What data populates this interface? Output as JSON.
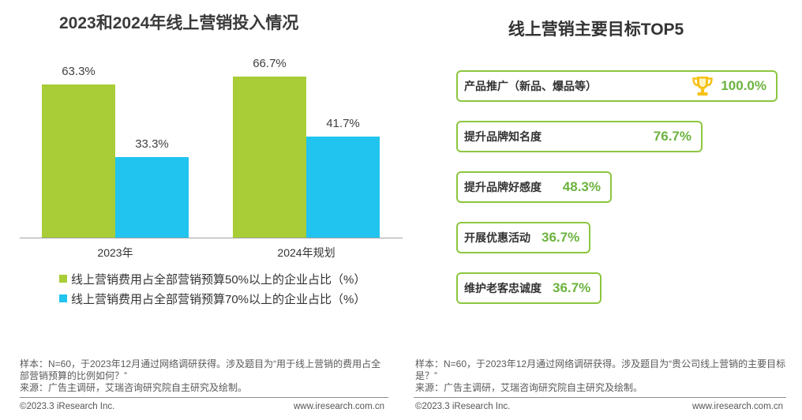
{
  "left": {
    "footer": {
      "sample": "样本：N=60，于2023年12月通过网络调研获得。涉及题目为“用于线上营销的费用占全部营销预算的比例如何？”",
      "source": "来源：广告主调研，艾瑞咨询研究院自主研究及绘制。",
      "copyright": "©2023.3 iResearch Inc.",
      "website": "www.iresearch.com.cn"
    }
  },
  "right": {
    "footer": {
      "sample": "样本：N=60，于2023年12月通过网络调研获得。涉及题目为“贵公司线上营销的主要目标是？”",
      "source": "来源：广告主调研，艾瑞咨询研究院自主研究及绘制。",
      "copyright": "©2023.3 iResearch Inc.",
      "website": "www.iresearch.com.cn"
    }
  },
  "chart_data": [
    {
      "type": "bar",
      "title": "2023和2024年线上营销投入情况",
      "categories": [
        "2023年",
        "2024年规划"
      ],
      "series": [
        {
          "name": "线上营销费用占全部营销预算50%以上的企业占比（%）",
          "values": [
            63.3,
            66.7
          ],
          "data_labels": [
            "63.3%",
            "66.7%"
          ],
          "color": "#A8CD36"
        },
        {
          "name": "线上营销费用占全部营销预算70%以上的企业占比（%）",
          "values": [
            33.3,
            41.7
          ],
          "data_labels": [
            "33.3%",
            "41.7%"
          ],
          "color": "#20C4EF"
        }
      ],
      "legend": "bottom",
      "grid": false
    },
    {
      "type": "bar",
      "orientation": "horizontal",
      "title": "线上营销主要目标TOP5",
      "categories": [
        "产品推广（新品、爆品等）",
        "提升品牌知名度",
        "提升品牌好感度",
        "开展优惠活动",
        "维护老客忠诚度"
      ],
      "values": [
        100.0,
        76.7,
        48.3,
        36.7,
        36.7
      ],
      "data_labels": [
        "100.0%",
        "76.7%",
        "48.3%",
        "36.7%",
        "36.7%"
      ],
      "highlight_icon": "trophy-icon",
      "icon_color": "#F6C117",
      "color": "#8CC63F",
      "label_color": "#6CB33F"
    }
  ]
}
